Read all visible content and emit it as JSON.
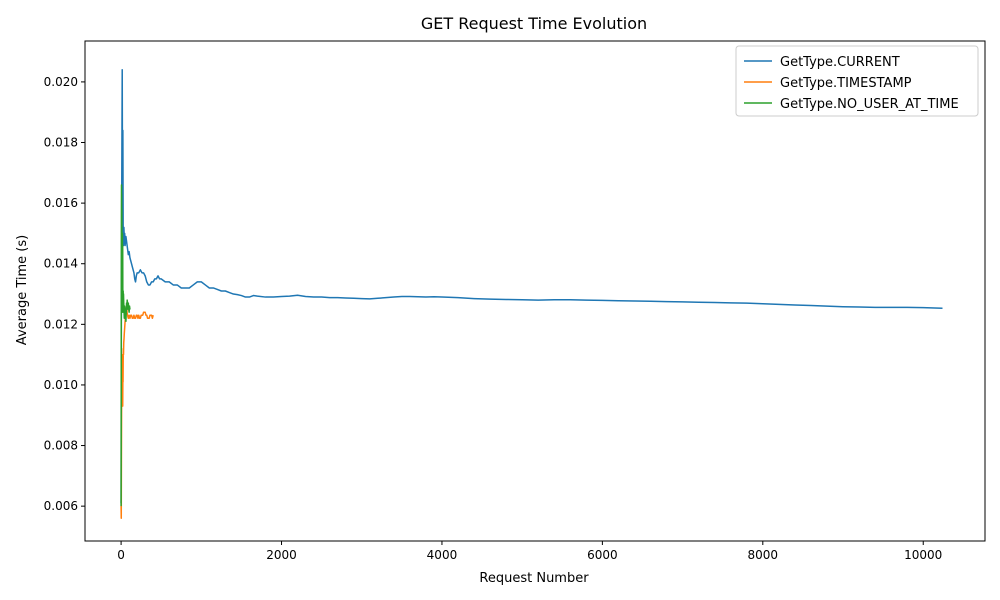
{
  "chart_data": {
    "type": "line",
    "title": "GET Request Time Evolution",
    "xlabel": "Request Number",
    "ylabel": "Average Time (s)",
    "xlim": [
      -450,
      10770
    ],
    "ylim": [
      0.00485,
      0.02135
    ],
    "xticks": [
      0,
      2000,
      4000,
      6000,
      8000,
      10000
    ],
    "xtick_labels": [
      "0",
      "2000",
      "4000",
      "6000",
      "8000",
      "10000"
    ],
    "yticks": [
      0.006,
      0.008,
      0.01,
      0.012,
      0.014,
      0.016,
      0.018,
      0.02
    ],
    "ytick_labels": [
      "0.006",
      "0.008",
      "0.010",
      "0.012",
      "0.014",
      "0.016",
      "0.018",
      "0.020"
    ],
    "grid": false,
    "legend_position": "top-right",
    "series": [
      {
        "name": "GetType.CURRENT",
        "color": "#1f77b4",
        "x": [
          0,
          3,
          6,
          10,
          14,
          18,
          22,
          26,
          30,
          35,
          40,
          45,
          50,
          60,
          70,
          80,
          90,
          100,
          110,
          120,
          130,
          140,
          150,
          160,
          170,
          180,
          190,
          200,
          220,
          240,
          260,
          280,
          300,
          320,
          340,
          360,
          380,
          400,
          420,
          440,
          460,
          480,
          500,
          550,
          600,
          650,
          700,
          750,
          800,
          850,
          900,
          950,
          1000,
          1050,
          1100,
          1150,
          1200,
          1250,
          1300,
          1350,
          1400,
          1450,
          1500,
          1550,
          1600,
          1650,
          1700,
          1800,
          1900,
          2000,
          2100,
          2200,
          2300,
          2400,
          2500,
          2600,
          2700,
          2800,
          2900,
          3000,
          3100,
          3200,
          3300,
          3400,
          3500,
          3600,
          3700,
          3800,
          3900,
          4000,
          4200,
          4400,
          4600,
          4800,
          5000,
          5200,
          5400,
          5600,
          5800,
          6000,
          6200,
          6400,
          6600,
          6800,
          7000,
          7200,
          7400,
          7600,
          7800,
          8000,
          8200,
          8400,
          8600,
          8800,
          9000,
          9200,
          9400,
          9600,
          9800,
          10000,
          10240
        ],
        "values": [
          0.0061,
          0.012,
          0.015,
          0.0178,
          0.0204,
          0.016,
          0.0184,
          0.015,
          0.0146,
          0.0152,
          0.0148,
          0.015,
          0.0146,
          0.0149,
          0.0147,
          0.0145,
          0.0143,
          0.0144,
          0.0142,
          0.0141,
          0.014,
          0.0139,
          0.0138,
          0.0137,
          0.0135,
          0.0134,
          0.0136,
          0.0137,
          0.0137,
          0.0138,
          0.0137,
          0.0137,
          0.0136,
          0.0134,
          0.0133,
          0.0133,
          0.0134,
          0.0134,
          0.0135,
          0.0135,
          0.0136,
          0.0135,
          0.0135,
          0.0134,
          0.0134,
          0.0133,
          0.0133,
          0.0132,
          0.0132,
          0.0132,
          0.0133,
          0.0134,
          0.0134,
          0.0133,
          0.0132,
          0.0132,
          0.01315,
          0.0131,
          0.0131,
          0.01305,
          0.013,
          0.01298,
          0.01295,
          0.0129,
          0.0129,
          0.01295,
          0.01293,
          0.0129,
          0.0129,
          0.01292,
          0.01293,
          0.01296,
          0.01292,
          0.0129,
          0.0129,
          0.01288,
          0.01288,
          0.01287,
          0.01286,
          0.01285,
          0.01284,
          0.01286,
          0.01288,
          0.0129,
          0.01292,
          0.01292,
          0.01291,
          0.0129,
          0.01291,
          0.0129,
          0.01288,
          0.01285,
          0.01283,
          0.01282,
          0.01281,
          0.0128,
          0.01281,
          0.01281,
          0.0128,
          0.01279,
          0.01278,
          0.01277,
          0.01276,
          0.01275,
          0.01274,
          0.01273,
          0.01272,
          0.01271,
          0.0127,
          0.01268,
          0.01266,
          0.01264,
          0.01262,
          0.0126,
          0.01258,
          0.01257,
          0.01256,
          0.01256,
          0.01256,
          0.01255,
          0.01253
        ]
      },
      {
        "name": "GetType.TIMESTAMP",
        "color": "#ff7f0e",
        "x": [
          0,
          2,
          4,
          6,
          8,
          10,
          12,
          14,
          16,
          18,
          20,
          22,
          24,
          26,
          28,
          30,
          33,
          36,
          40,
          45,
          50,
          55,
          60,
          65,
          70,
          75,
          80,
          90,
          100,
          110,
          120,
          130,
          140,
          150,
          160,
          170,
          180,
          190,
          200,
          210,
          220,
          230,
          240,
          250,
          260,
          270,
          280,
          290,
          300,
          310,
          320,
          330,
          340,
          350,
          360,
          370,
          380,
          390,
          400
        ],
        "values": [
          0.006,
          0.0056,
          0.0075,
          0.009,
          0.0102,
          0.011,
          0.01,
          0.0105,
          0.0094,
          0.0098,
          0.0093,
          0.0102,
          0.0101,
          0.0108,
          0.0112,
          0.011,
          0.0114,
          0.0115,
          0.0117,
          0.0119,
          0.0121,
          0.0123,
          0.0124,
          0.0125,
          0.0126,
          0.0124,
          0.0123,
          0.0122,
          0.0123,
          0.0122,
          0.0123,
          0.0123,
          0.0122,
          0.0122,
          0.0123,
          0.0122,
          0.0122,
          0.0123,
          0.0123,
          0.0122,
          0.0123,
          0.0122,
          0.0122,
          0.0123,
          0.0123,
          0.0123,
          0.0124,
          0.0124,
          0.0124,
          0.0123,
          0.0123,
          0.0122,
          0.0122,
          0.0122,
          0.0123,
          0.0123,
          0.0123,
          0.0122,
          0.0123
        ]
      },
      {
        "name": "GetType.NO_USER_AT_TIME",
        "color": "#2ca02c",
        "x": [
          0,
          1,
          2,
          3,
          4,
          5,
          6,
          7,
          8,
          9,
          10,
          11,
          12,
          14,
          16,
          18,
          20,
          22,
          24,
          26,
          28,
          30,
          33,
          36,
          40,
          44,
          48,
          52,
          56,
          60,
          64,
          68,
          72,
          76,
          80,
          85,
          90,
          95,
          100,
          105,
          110,
          115
        ],
        "values": [
          0.006,
          0.008,
          0.012,
          0.014,
          0.0155,
          0.0166,
          0.015,
          0.0163,
          0.0138,
          0.0158,
          0.0133,
          0.0145,
          0.0128,
          0.0124,
          0.015,
          0.0131,
          0.0146,
          0.0125,
          0.0129,
          0.0131,
          0.0124,
          0.013,
          0.0127,
          0.0125,
          0.0122,
          0.0126,
          0.0125,
          0.0124,
          0.0123,
          0.0121,
          0.0124,
          0.0127,
          0.0125,
          0.0128,
          0.0127,
          0.0125,
          0.0127,
          0.0125,
          0.0124,
          0.0126,
          0.0125,
          0.0125
        ]
      }
    ]
  }
}
